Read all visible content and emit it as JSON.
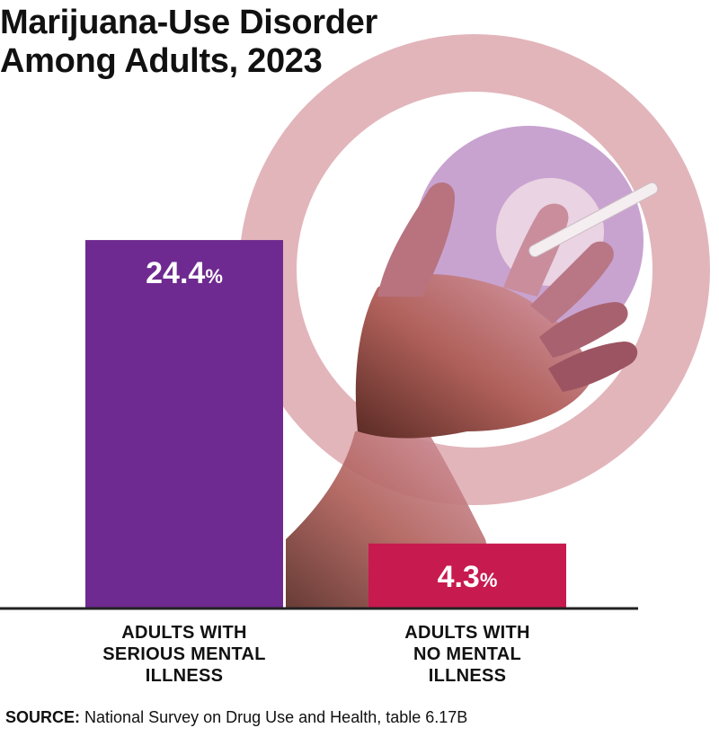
{
  "title": {
    "line1": "Marijuana-Use Disorder",
    "line2": "Among Adults, 2023"
  },
  "source": {
    "label": "SOURCE:",
    "text": "National Survey on Drug Use and Health, table 6.17B"
  },
  "colors": {
    "bar_serious": "#6e2a90",
    "bar_none": "#c71a4f",
    "ring_outer": "#e2b5bb",
    "ring_inner": "#c8a3d0",
    "baseline": "#222222"
  },
  "illustration": "hand-holding-joint",
  "chart_data": {
    "type": "bar",
    "title": "Marijuana-Use Disorder Among Adults, 2023",
    "categories": [
      [
        "ADULTS WITH",
        "SERIOUS MENTAL",
        "ILLNESS"
      ],
      [
        "ADULTS WITH",
        "NO MENTAL",
        "ILLNESS"
      ]
    ],
    "values": [
      24.4,
      4.3
    ],
    "value_labels": [
      "24.4",
      "4.3"
    ],
    "unit": "%",
    "ylim": [
      0,
      30
    ],
    "grid": false,
    "legend": "none"
  }
}
